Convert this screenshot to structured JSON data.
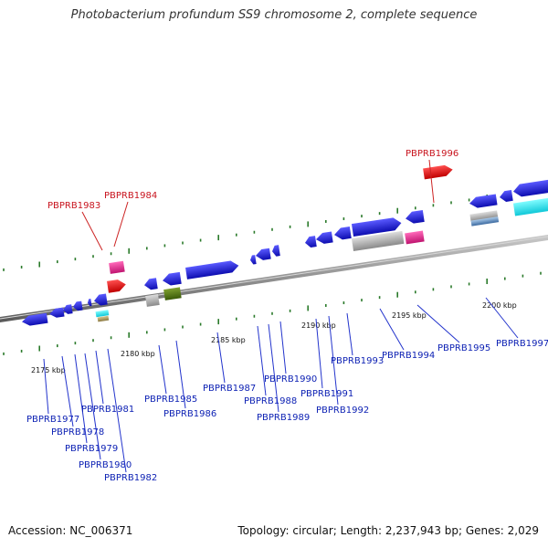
{
  "title": "Photobacterium profundum SS9 chromosome 2, complete sequence",
  "footer": {
    "accession": "Accession: NC_006371",
    "info": "Topology: circular; Length: 2,237,943 bp; Genes: 2,029"
  },
  "colors": {
    "gene_blue": "#1f1fe0",
    "gene_red": "#ee1111",
    "gene_pink": "#ee2c8c",
    "gene_grey": "#b8b8b8",
    "gene_olive": "#5a7a18",
    "gene_cyan": "#22e6f0",
    "gene_steel": "#6f96c0",
    "gene_tan": "#b0a070",
    "backbone": "#8c8c8c",
    "tick_green": "#2a7a2a",
    "label_blue": "#0b1fb3",
    "label_red": "#c8141e"
  },
  "scale_labels": [
    "2175 kbp",
    "2180 kbp",
    "2185 kbp",
    "2190 kbp",
    "2195 kbp",
    "2200 kbp"
  ],
  "gene_labels": {
    "blue": [
      "PBPRB1977",
      "PBPRB1978",
      "PBPRB1979",
      "PBPRB1980",
      "PBPRB1981",
      "PBPRB1982",
      "PBPRB1985",
      "PBPRB1986",
      "PBPRB1987",
      "PBPRB1988",
      "PBPRB1989",
      "PBPRB1990",
      "PBPRB1991",
      "PBPRB1992",
      "PBPRB1993",
      "PBPRB1994",
      "PBPRB1995",
      "PBPRB1997"
    ],
    "red": [
      "PBPRB1983",
      "PBPRB1984",
      "PBPRB1996"
    ]
  }
}
